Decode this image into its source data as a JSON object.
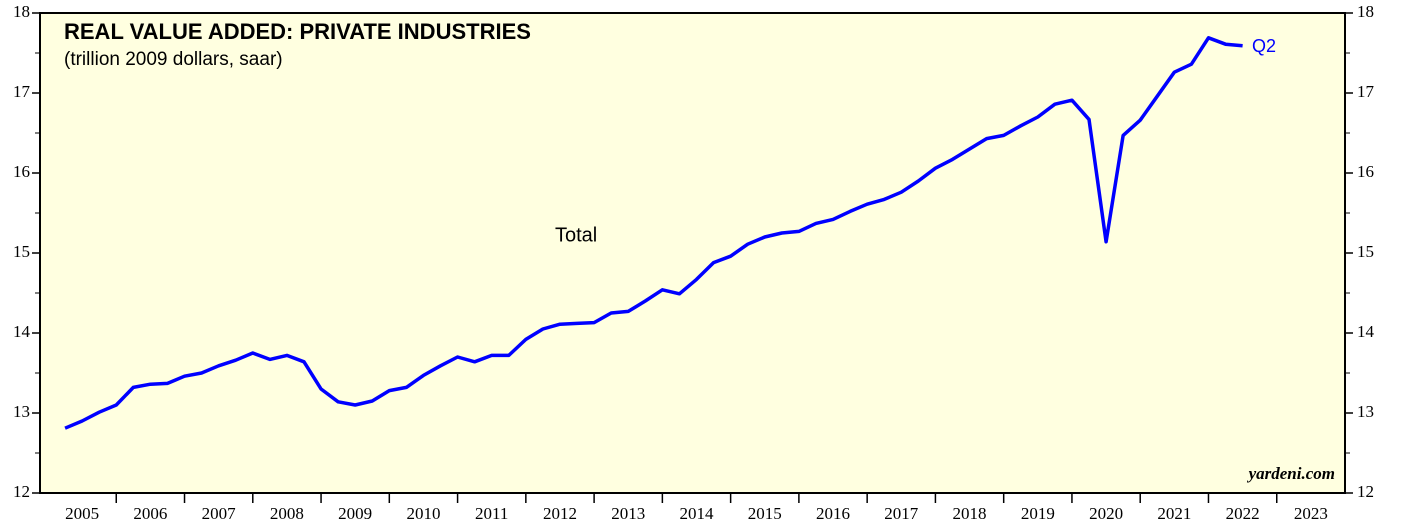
{
  "chart_data": {
    "type": "line",
    "title": "REAL VALUE ADDED: PRIVATE INDUSTRIES",
    "subtitle": "(trillion 2009 dollars, saar)",
    "annotations": [
      "Total",
      "Q2",
      "yardeni.com"
    ],
    "x": [
      2005.25,
      2005.5,
      2005.75,
      2006,
      2006.25,
      2006.5,
      2006.75,
      2007,
      2007.25,
      2007.5,
      2007.75,
      2008,
      2008.25,
      2008.5,
      2008.75,
      2009,
      2009.25,
      2009.5,
      2009.75,
      2010,
      2010.25,
      2010.5,
      2010.75,
      2011,
      2011.25,
      2011.5,
      2011.75,
      2012,
      2012.25,
      2012.5,
      2012.75,
      2013,
      2013.25,
      2013.5,
      2013.75,
      2014,
      2014.25,
      2014.5,
      2014.75,
      2015,
      2015.25,
      2015.5,
      2015.75,
      2016,
      2016.25,
      2016.5,
      2016.75,
      2017,
      2017.25,
      2017.5,
      2017.75,
      2018,
      2018.25,
      2018.5,
      2018.75,
      2019,
      2019.25,
      2019.5,
      2019.75,
      2020,
      2020.25,
      2020.5,
      2020.75,
      2021,
      2021.25,
      2021.5,
      2021.75,
      2022,
      2022.25,
      2022.5
    ],
    "series": [
      {
        "name": "Total",
        "color": "#0000ff",
        "values": [
          12.81,
          12.9,
          13.01,
          13.1,
          13.32,
          13.36,
          13.37,
          13.46,
          13.5,
          13.59,
          13.66,
          13.75,
          13.67,
          13.72,
          13.64,
          13.3,
          13.14,
          13.1,
          13.15,
          13.28,
          13.32,
          13.47,
          13.59,
          13.7,
          13.64,
          13.72,
          13.72,
          13.92,
          14.05,
          14.11,
          14.12,
          14.13,
          14.25,
          14.27,
          14.4,
          14.54,
          14.49,
          14.67,
          14.88,
          14.96,
          15.11,
          15.2,
          15.25,
          15.27,
          15.37,
          15.42,
          15.52,
          15.61,
          15.67,
          15.76,
          15.9,
          16.06,
          16.17,
          16.3,
          16.43,
          16.47,
          16.59,
          16.7,
          16.86,
          16.91,
          16.67,
          15.14,
          16.47,
          16.66,
          16.96,
          17.26,
          17.36,
          17.69,
          17.61,
          17.59
        ]
      }
    ],
    "xlim": [
      2005,
      2024
    ],
    "xticks": [
      2005,
      2006,
      2007,
      2008,
      2009,
      2010,
      2011,
      2012,
      2013,
      2014,
      2015,
      2016,
      2017,
      2018,
      2019,
      2020,
      2021,
      2022,
      2023
    ],
    "ylim": [
      12,
      18
    ],
    "yticks": [
      12,
      13,
      14,
      15,
      16,
      17,
      18
    ],
    "background": "#ffffe0"
  }
}
